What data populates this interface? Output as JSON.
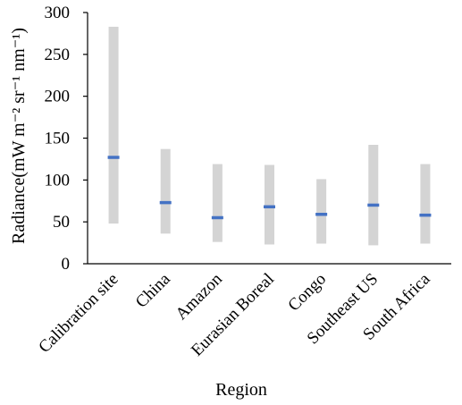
{
  "chart_data": {
    "type": "range",
    "xlabel": "Region",
    "ylabel": "Radiance(mW m⁻² sr⁻¹ nm⁻¹)",
    "ylim": [
      0,
      300
    ],
    "yticks": [
      0,
      50,
      100,
      150,
      200,
      250,
      300
    ],
    "grid": false,
    "categories": [
      "Calibration site",
      "China",
      "Amazon",
      "Eurasian Boreal",
      "Congo",
      "Southeast US",
      "South Africa"
    ],
    "series": [
      {
        "values_min": [
          48,
          36,
          26,
          23,
          24,
          22,
          24
        ],
        "values_max": [
          283,
          137,
          119,
          118,
          101,
          142,
          119
        ],
        "values_mean": [
          127,
          73,
          55,
          68,
          59,
          70,
          58
        ]
      }
    ],
    "colors": {
      "range_bar": "#d4d4d4",
      "mean_marker": "#4472c4",
      "axis": "#000000"
    }
  }
}
